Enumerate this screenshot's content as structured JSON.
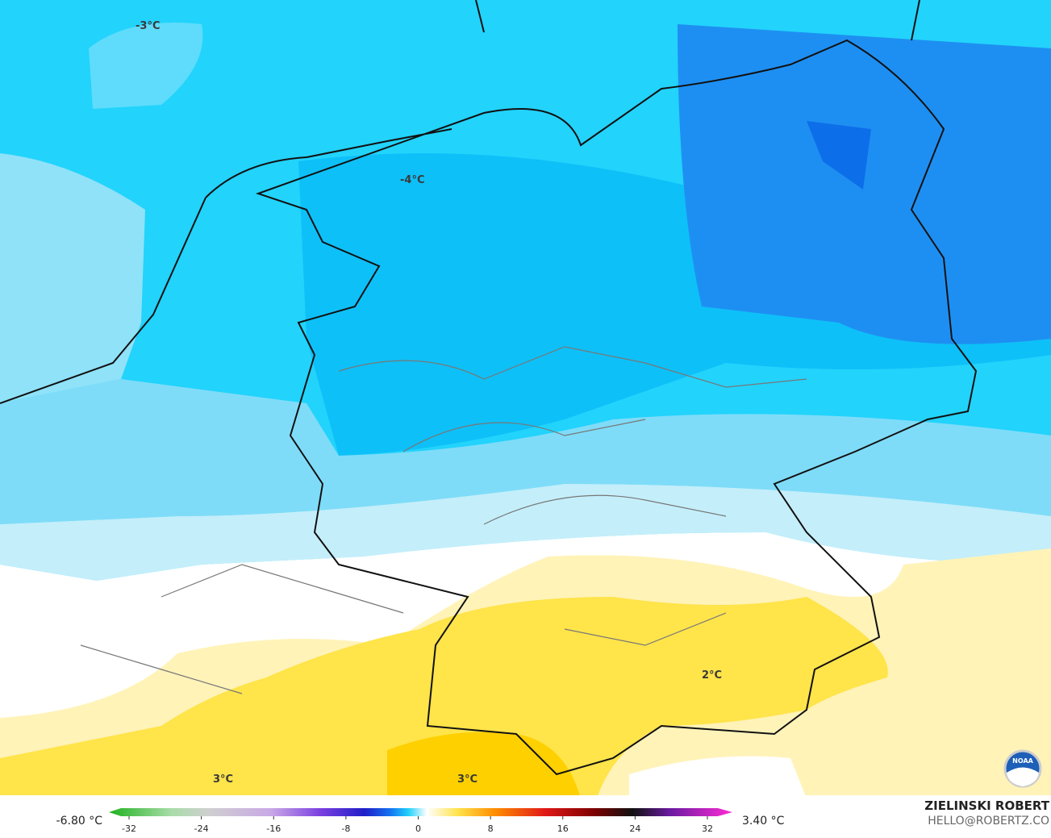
{
  "map": {
    "contour_labels": [
      "-3°C",
      "-4°C",
      "2°C",
      "3°C",
      "3°C"
    ]
  },
  "colorbar": {
    "min_label": "-6.80 °C",
    "max_label": "3.40 °C",
    "ticks": [
      -32,
      -24,
      -16,
      -8,
      0,
      8,
      16,
      24,
      32
    ]
  },
  "credit": {
    "name": "ZIELINSKI ROBERT",
    "contact": "HELLO@ROBERTZ.CO"
  },
  "logo": "NOAA"
}
